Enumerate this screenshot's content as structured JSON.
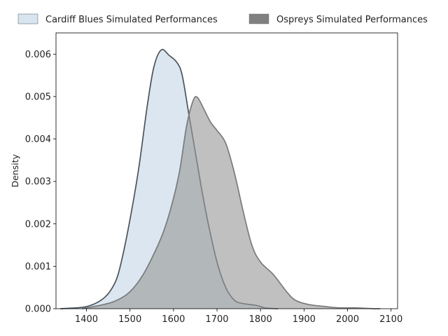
{
  "chart_data": {
    "type": "area",
    "xlabel": "",
    "ylabel": "Density",
    "xlim": [
      1330,
      2115
    ],
    "ylim": [
      0,
      0.0065
    ],
    "x_ticks": [
      1400,
      1500,
      1600,
      1700,
      1800,
      1900,
      2000,
      2100
    ],
    "y_ticks": [
      0.0,
      0.001,
      0.002,
      0.003,
      0.004,
      0.005,
      0.006
    ],
    "legend_position": "top-center",
    "grid": false,
    "series": [
      {
        "name": "Cardiff Blues Simulated Performances",
        "fill_color": "#c7d9e8",
        "line_color": "#4a545c",
        "points": [
          [
            1340,
            0.0
          ],
          [
            1400,
            5e-05
          ],
          [
            1440,
            0.00025
          ],
          [
            1465,
            0.0006
          ],
          [
            1480,
            0.0011
          ],
          [
            1500,
            0.0021
          ],
          [
            1520,
            0.0033
          ],
          [
            1540,
            0.0048
          ],
          [
            1555,
            0.0057
          ],
          [
            1572,
            0.0061
          ],
          [
            1590,
            0.00597
          ],
          [
            1608,
            0.0058
          ],
          [
            1620,
            0.0055
          ],
          [
            1635,
            0.0046
          ],
          [
            1650,
            0.0037
          ],
          [
            1665,
            0.0028
          ],
          [
            1680,
            0.002
          ],
          [
            1700,
            0.0011
          ],
          [
            1720,
            0.0005
          ],
          [
            1740,
            0.0002
          ],
          [
            1760,
            0.00012
          ],
          [
            1790,
            8e-05
          ],
          [
            1810,
            2e-05
          ],
          [
            1840,
            0.0
          ]
        ]
      },
      {
        "name": "Ospreys Simulated Performances",
        "fill_color": "#999999",
        "line_color": "#7a7a7a",
        "points": [
          [
            1390,
            0.0
          ],
          [
            1440,
            0.0001
          ],
          [
            1470,
            0.0002
          ],
          [
            1500,
            0.0004
          ],
          [
            1530,
            0.0008
          ],
          [
            1560,
            0.0014
          ],
          [
            1580,
            0.0019
          ],
          [
            1600,
            0.0026
          ],
          [
            1615,
            0.0033
          ],
          [
            1630,
            0.0043
          ],
          [
            1645,
            0.0049
          ],
          [
            1655,
            0.00498
          ],
          [
            1670,
            0.0047
          ],
          [
            1685,
            0.0044
          ],
          [
            1700,
            0.0042
          ],
          [
            1720,
            0.0039
          ],
          [
            1740,
            0.0032
          ],
          [
            1760,
            0.0023
          ],
          [
            1780,
            0.0015
          ],
          [
            1800,
            0.0011
          ],
          [
            1830,
            0.0008
          ],
          [
            1860,
            0.0004
          ],
          [
            1880,
            0.0002
          ],
          [
            1910,
            0.0001
          ],
          [
            1950,
            5e-05
          ],
          [
            1980,
            2e-05
          ],
          [
            2020,
            2e-05
          ],
          [
            2060,
            0.0
          ],
          [
            2075,
            0.0
          ]
        ]
      }
    ]
  }
}
